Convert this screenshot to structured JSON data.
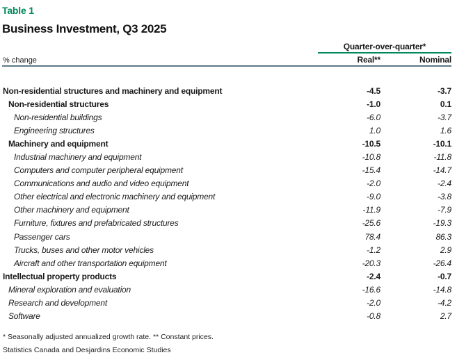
{
  "page": {
    "kicker": "Table 1",
    "title": "Business Investment, Q3 2025"
  },
  "table": {
    "unit_label": "% change",
    "column_group": "Quarter-over-quarter*",
    "column_real": "Real**",
    "column_nominal": "Nominal",
    "rows": [
      {
        "label": "Non-residential structures and machinery and equipment",
        "real": "-4.5",
        "nominal": "-3.7",
        "style": "bold",
        "indent": 0
      },
      {
        "label": "Non-residential structures",
        "real": "-1.0",
        "nominal": "0.1",
        "style": "bold",
        "indent": 1
      },
      {
        "label": "Non-residential buildings",
        "real": "-6.0",
        "nominal": "-3.7",
        "style": "italic",
        "indent": 2
      },
      {
        "label": "Engineering structures",
        "real": "1.0",
        "nominal": "1.6",
        "style": "italic",
        "indent": 2
      },
      {
        "label": "Machinery and equipment",
        "real": "-10.5",
        "nominal": "-10.1",
        "style": "bold",
        "indent": 1
      },
      {
        "label": "Industrial machinery and equipment",
        "real": "-10.8",
        "nominal": "-11.8",
        "style": "italic",
        "indent": 2
      },
      {
        "label": "Computers and computer peripheral equipment",
        "real": "-15.4",
        "nominal": "-14.7",
        "style": "italic",
        "indent": 2
      },
      {
        "label": "Communications and audio and video equipment",
        "real": "-2.0",
        "nominal": "-2.4",
        "style": "italic",
        "indent": 2
      },
      {
        "label": "Other electrical and electronic machinery and equipment",
        "real": "-9.0",
        "nominal": "-3.8",
        "style": "italic",
        "indent": 2
      },
      {
        "label": "Other machinery and equipment",
        "real": "-11.9",
        "nominal": "-7.9",
        "style": "italic",
        "indent": 2
      },
      {
        "label": "Furniture, fixtures and prefabricated structures",
        "real": "-25.6",
        "nominal": "-19.3",
        "style": "italic",
        "indent": 2
      },
      {
        "label": "Passenger cars",
        "real": "78.4",
        "nominal": "86.3",
        "style": "italic",
        "indent": 2
      },
      {
        "label": "Trucks, buses and other motor vehicles",
        "real": "-1.2",
        "nominal": "2.9",
        "style": "italic",
        "indent": 2
      },
      {
        "label": "Aircraft and other transportation equipment",
        "real": "-20.3",
        "nominal": "-26.4",
        "style": "italic",
        "indent": 2
      },
      {
        "label": "Intellectual property products",
        "real": "-2.4",
        "nominal": "-0.7",
        "style": "bold",
        "indent": 0
      },
      {
        "label": "Mineral exploration and evaluation",
        "real": "-16.6",
        "nominal": "-14.8",
        "style": "italic",
        "indent": 1
      },
      {
        "label": "Research and development",
        "real": "-2.0",
        "nominal": "-4.2",
        "style": "italic",
        "indent": 1
      },
      {
        "label": "Software",
        "real": "-0.8",
        "nominal": "2.7",
        "style": "italic",
        "indent": 1
      }
    ]
  },
  "footnotes": {
    "definitions": "* Seasonally adjusted annualized growth rate. ** Constant prices.",
    "source": "Statistics Canada and Desjardins Economic Studies"
  },
  "colors": {
    "accent_green": "#00885A",
    "header_rule": "#5D7987",
    "text": "#1A1A1A"
  }
}
